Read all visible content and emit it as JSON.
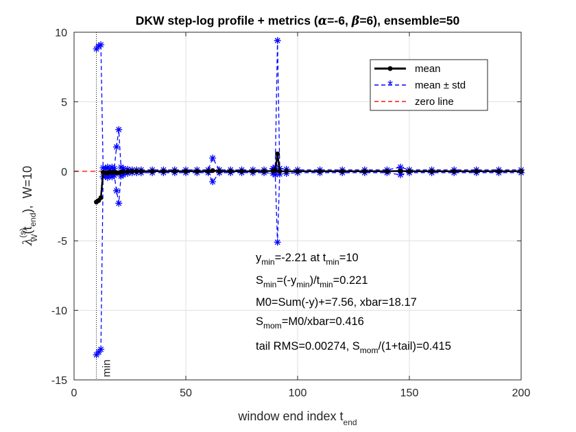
{
  "chart_data": {
    "type": "line",
    "title_parts": [
      "DKW step-log profile + metrics (",
      "α",
      "=-6, ",
      "β",
      "=6), ensemble=50"
    ],
    "xlabel": {
      "main": "window end index t",
      "sub": "end"
    },
    "ylabel": {
      "lambda": "λ",
      "sup": "(s)",
      "sub": "W",
      "arg_open": "(t",
      "arg_sub": "end",
      "arg_close": "),",
      "w": "W=10"
    },
    "xlim": [
      0,
      200
    ],
    "ylim": [
      -15,
      10
    ],
    "xticks": [
      0,
      50,
      100,
      150,
      200
    ],
    "yticks": [
      -15,
      -10,
      -5,
      0,
      5,
      10
    ],
    "xtick_labels": [
      "0",
      "50",
      "100",
      "150",
      "200"
    ],
    "ytick_labels": [
      "-15",
      "-10",
      "-5",
      "0",
      "5",
      "10"
    ],
    "grid": true,
    "legend": {
      "position": "top-right",
      "entries": [
        "mean",
        "mean ± std",
        "zero line"
      ]
    },
    "vline": {
      "x": 10,
      "label": "min"
    },
    "series": [
      {
        "name": "mean",
        "color": "#000000",
        "style": "solid-asterisk",
        "x": [
          10,
          11,
          12,
          13,
          14,
          15,
          16,
          17,
          18,
          19,
          20,
          21,
          22,
          24,
          26,
          28,
          30,
          35,
          40,
          45,
          50,
          55,
          60,
          62,
          65,
          70,
          75,
          80,
          85,
          89,
          90,
          91,
          92,
          95,
          100,
          110,
          120,
          130,
          140,
          146,
          150,
          160,
          170,
          180,
          190,
          200
        ],
        "y": [
          -2.21,
          -2.1,
          -1.9,
          -0.08,
          -0.1,
          -0.12,
          -0.05,
          -0.09,
          -0.06,
          -0.1,
          -0.11,
          -0.05,
          -0.03,
          -0.02,
          0.0,
          0.01,
          0.0,
          0.0,
          0.0,
          0.0,
          0.0,
          0.0,
          0.0,
          0.05,
          0.0,
          0.0,
          0.0,
          0.0,
          0.0,
          0.03,
          0.05,
          1.25,
          0.0,
          0.0,
          0.0,
          0.0,
          0.0,
          0.0,
          0.0,
          0.02,
          0.0,
          0.0,
          0.0,
          0.0,
          0.0,
          0.0
        ]
      },
      {
        "name": "mean + std",
        "color": "#0000ff",
        "style": "dashed-asterisk",
        "x": [
          10,
          11,
          12,
          13,
          14,
          15,
          16,
          17,
          18,
          19,
          20,
          21,
          22,
          24,
          26,
          28,
          30,
          35,
          40,
          45,
          50,
          55,
          60,
          62,
          65,
          70,
          75,
          80,
          85,
          89,
          90,
          91,
          92,
          95,
          100,
          110,
          120,
          130,
          140,
          146,
          150,
          160,
          170,
          180,
          190,
          200
        ],
        "y": [
          8.8,
          9.0,
          9.1,
          0.25,
          0.2,
          0.3,
          0.15,
          0.3,
          0.2,
          1.75,
          3.0,
          0.3,
          0.2,
          0.15,
          0.1,
          0.1,
          0.1,
          0.1,
          0.1,
          0.1,
          0.1,
          0.1,
          0.1,
          0.95,
          0.1,
          0.1,
          0.1,
          0.1,
          0.1,
          0.2,
          0.3,
          9.4,
          0.2,
          0.15,
          0.1,
          0.1,
          0.1,
          0.1,
          0.1,
          0.3,
          0.1,
          0.1,
          0.1,
          0.1,
          0.1,
          0.1
        ]
      },
      {
        "name": "mean - std",
        "color": "#0000ff",
        "style": "dashed-asterisk",
        "x": [
          10,
          11,
          12,
          13,
          14,
          15,
          16,
          17,
          18,
          19,
          20,
          21,
          22,
          24,
          26,
          28,
          30,
          35,
          40,
          45,
          50,
          55,
          60,
          62,
          65,
          70,
          75,
          80,
          85,
          89,
          90,
          91,
          92,
          95,
          100,
          110,
          120,
          130,
          140,
          146,
          150,
          160,
          170,
          180,
          190,
          200
        ],
        "y": [
          -13.2,
          -13.0,
          -12.8,
          -0.4,
          -0.3,
          -0.45,
          -0.25,
          -0.4,
          -0.3,
          -1.4,
          -2.3,
          -0.35,
          -0.25,
          -0.15,
          -0.1,
          -0.1,
          -0.1,
          -0.1,
          -0.1,
          -0.1,
          -0.1,
          -0.1,
          -0.1,
          -0.75,
          -0.1,
          -0.1,
          -0.1,
          -0.1,
          -0.1,
          -0.15,
          -0.25,
          -5.1,
          -0.2,
          -0.15,
          -0.1,
          -0.1,
          -0.1,
          -0.1,
          -0.1,
          -0.25,
          -0.1,
          -0.1,
          -0.1,
          -0.1,
          -0.1,
          -0.1
        ]
      },
      {
        "name": "zero line",
        "color": "#ff4d4d",
        "style": "dashed",
        "x": [
          0,
          200
        ],
        "y": [
          0,
          0
        ]
      }
    ],
    "annotations": [
      {
        "t1": "y",
        "t1_sub": "min",
        "t2": "=-2.21 at t",
        "t2_sub": "min",
        "t3": "=10"
      },
      {
        "t1": "S",
        "t1_sub": "min",
        "t2": "=(-y",
        "t2_sub": "min",
        "t3": ")/t",
        "t3_sub": "min",
        "t4": "=0.221"
      },
      {
        "t1": "M0=Sum(-y)+=7.56, xbar=18.17"
      },
      {
        "t1": "S",
        "t1_sub": "mom",
        "t2": "=M0/xbar=0.416"
      },
      {
        "t1": "tail RMS=0.00274, S",
        "t1_sub": "mom",
        "t2": "/(1+tail)=0.415"
      }
    ]
  }
}
